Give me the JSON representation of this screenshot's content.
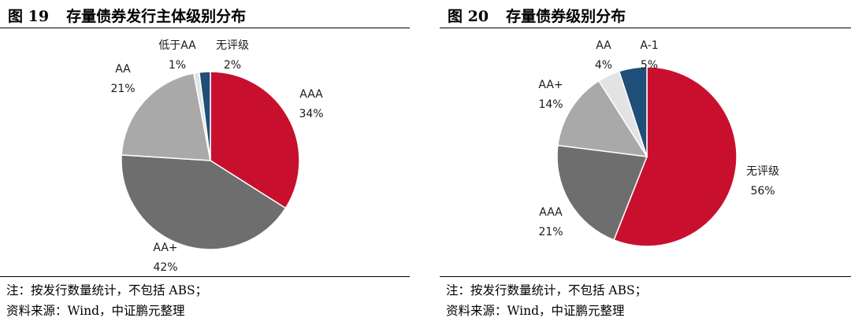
{
  "chart_data": [
    {
      "type": "pie",
      "figure_no": "图 19",
      "title": "存量债券发行主体级别分布",
      "slices": [
        {
          "label": "AAA",
          "value": 34,
          "pct_text": "34%",
          "color": "#c8102e"
        },
        {
          "label": "AA+",
          "value": 42,
          "pct_text": "42%",
          "color": "#6e6e6e"
        },
        {
          "label": "AA",
          "value": 21,
          "pct_text": "21%",
          "color": "#a9a9a9"
        },
        {
          "label": "低于AA",
          "value": 1,
          "pct_text": "1%",
          "color": "#e3e3e3"
        },
        {
          "label": "无评级",
          "value": 2,
          "pct_text": "2%",
          "color": "#1f4e79"
        }
      ],
      "start_angle_deg": 0,
      "direction": "clockwise",
      "note": "注：按发行数量统计，不包括 ABS；",
      "source": "资料来源：Wind，中证鹏元整理"
    },
    {
      "type": "pie",
      "figure_no": "图 20",
      "title": "存量债券级别分布",
      "slices": [
        {
          "label": "无评级",
          "value": 56,
          "pct_text": "56%",
          "color": "#c8102e"
        },
        {
          "label": "AAA",
          "value": 21,
          "pct_text": "21%",
          "color": "#6e6e6e"
        },
        {
          "label": "AA+",
          "value": 14,
          "pct_text": "14%",
          "color": "#a9a9a9"
        },
        {
          "label": "AA",
          "value": 4,
          "pct_text": "4%",
          "color": "#e3e3e3"
        },
        {
          "label": "A-1",
          "value": 5,
          "pct_text": "5%",
          "color": "#1f4e79"
        }
      ],
      "start_angle_deg": 0,
      "direction": "clockwise",
      "note": "注：按发行数量统计，不包括 ABS；",
      "source": "资料来源：Wind，中证鹏元整理"
    }
  ]
}
